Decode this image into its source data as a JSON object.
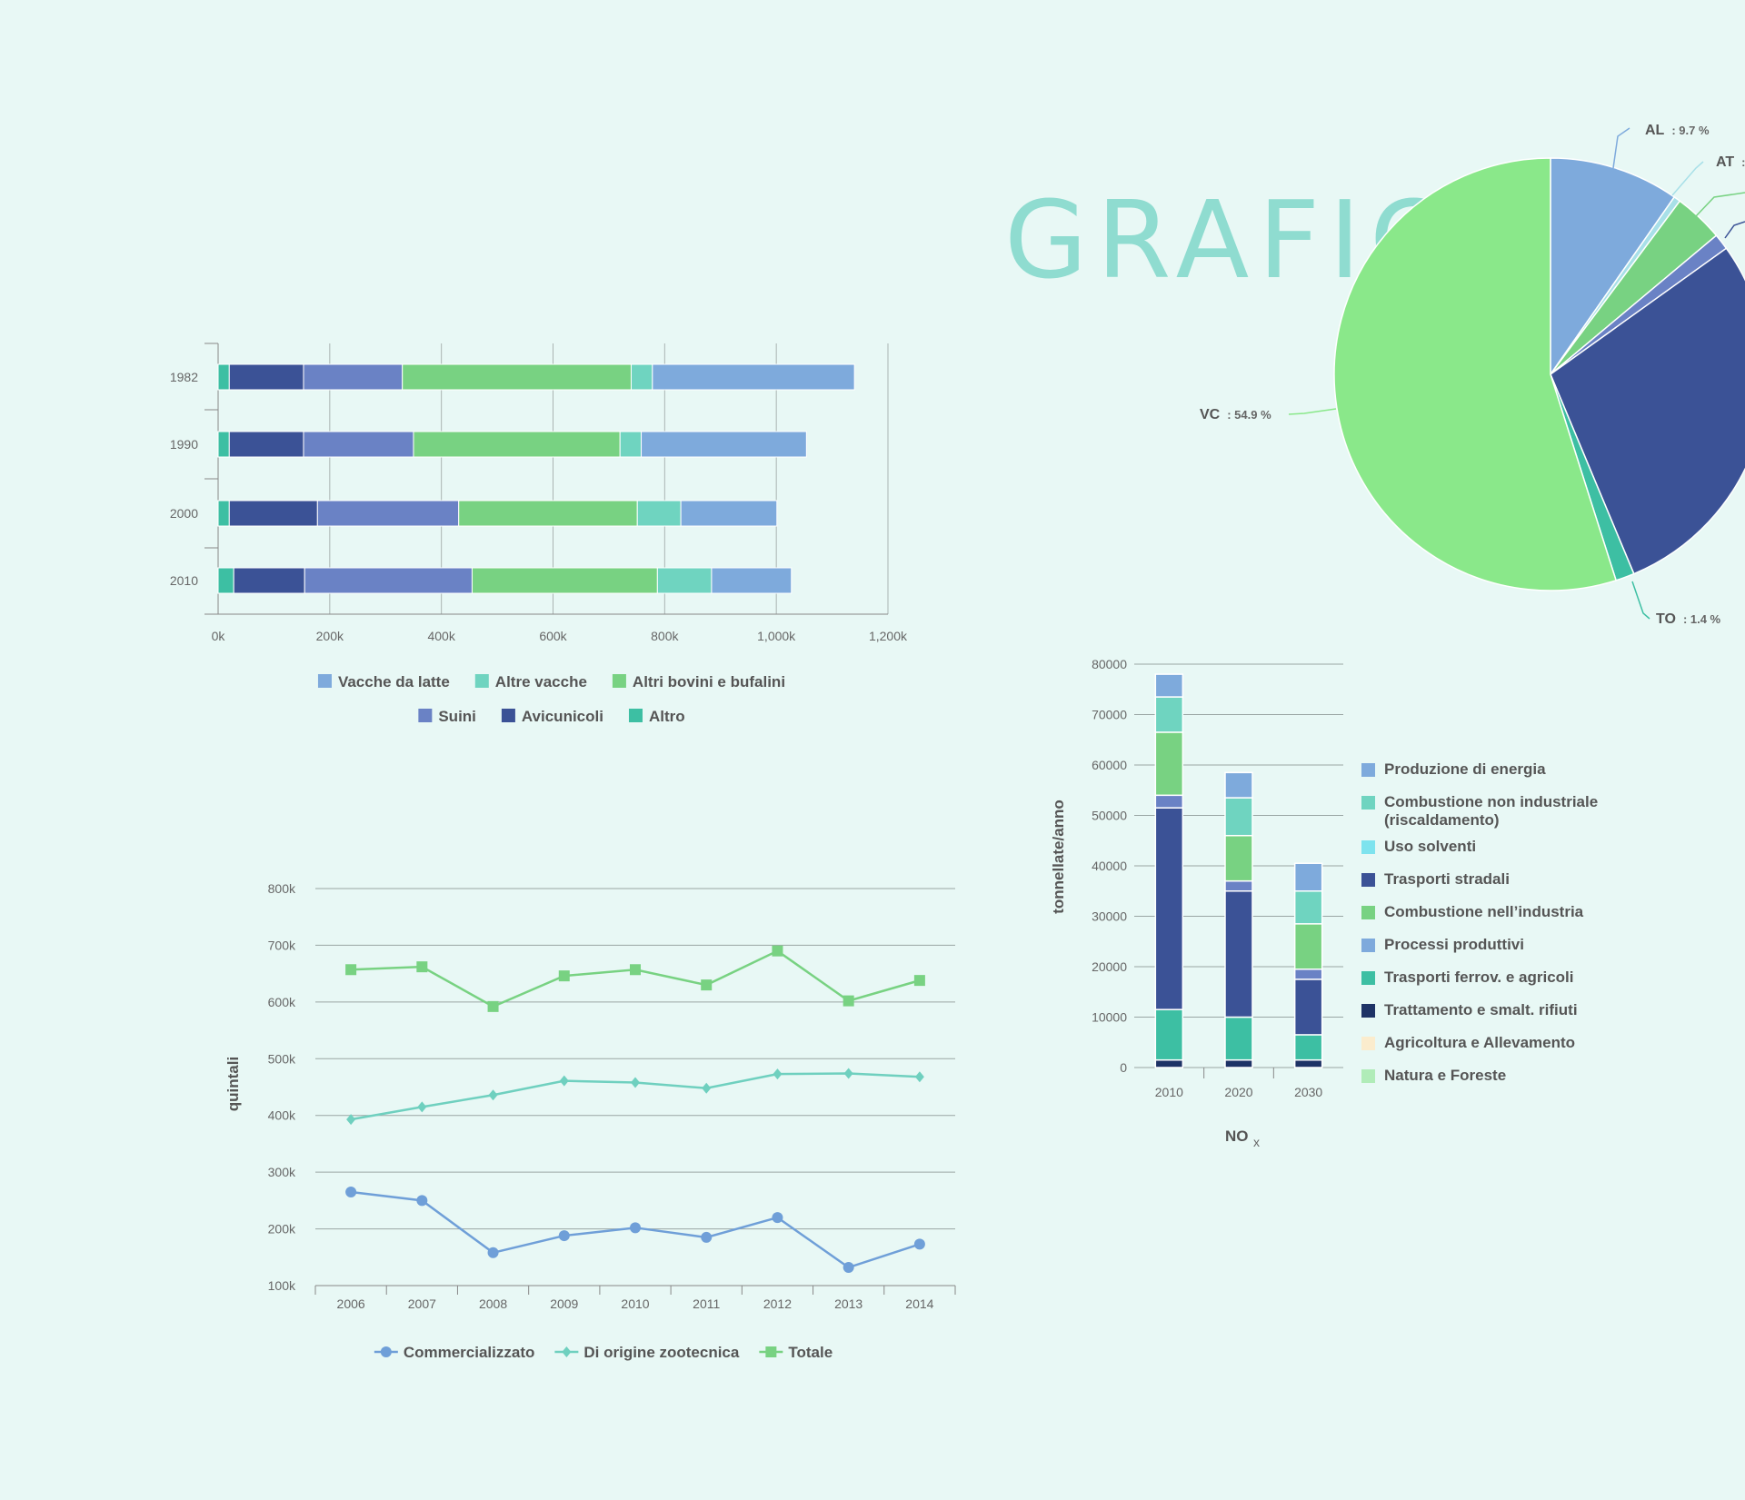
{
  "page": {
    "title": "GRAFICI"
  },
  "chart_data": [
    {
      "id": "livestock",
      "type": "bar",
      "orientation": "horizontal",
      "stacked": true,
      "categories": [
        "1982",
        "1990",
        "2000",
        "2010"
      ],
      "series": [
        {
          "name": "Altro",
          "color": "#3dbfa3",
          "values": [
            20000,
            20000,
            20000,
            28000
          ]
        },
        {
          "name": "Avicunicoli",
          "color": "#3b5296",
          "values": [
            133000,
            133000,
            158000,
            127000
          ]
        },
        {
          "name": "Suini",
          "color": "#6a82c5",
          "values": [
            177000,
            197000,
            253000,
            300000
          ]
        },
        {
          "name": "Altri bovini e bufalini",
          "color": "#78d282",
          "values": [
            410000,
            370000,
            320000,
            332000
          ]
        },
        {
          "name": "Altre vacche",
          "color": "#6fd4c0",
          "values": [
            38000,
            38000,
            78000,
            97000
          ]
        },
        {
          "name": "Vacche da latte",
          "color": "#7eaadc",
          "values": [
            362000,
            296000,
            172000,
            143000
          ]
        }
      ],
      "x_ticks": [
        "0k",
        "200k",
        "400k",
        "600k",
        "800k",
        "1,000k",
        "1,200k"
      ],
      "xlim": [
        0,
        1200000
      ],
      "legend_order": [
        "Vacche da latte",
        "Altre vacche",
        "Altri bovini e bufalini",
        "Suini",
        "Avicunicoli",
        "Altro"
      ],
      "legend_position": "bottom"
    },
    {
      "id": "production",
      "type": "line",
      "x": [
        "2006",
        "2007",
        "2008",
        "2009",
        "2010",
        "2011",
        "2012",
        "2013",
        "2014"
      ],
      "ylabel": "quintali",
      "y_ticks": [
        "100k",
        "200k",
        "300k",
        "400k",
        "500k",
        "600k",
        "700k",
        "800k"
      ],
      "ylim": [
        100000,
        800000
      ],
      "series": [
        {
          "name": "Commercializzato",
          "color": "#6f9fd8",
          "marker": "circle",
          "values": [
            265000,
            250000,
            158000,
            188000,
            202000,
            185000,
            220000,
            132000,
            173000
          ]
        },
        {
          "name": "Di origine zootecnica",
          "color": "#6fd0bf",
          "marker": "diamond",
          "values": [
            393000,
            415000,
            436000,
            461000,
            458000,
            448000,
            473000,
            474000,
            468000
          ]
        },
        {
          "name": "Totale",
          "color": "#78d282",
          "marker": "square",
          "values": [
            657000,
            662000,
            592000,
            646000,
            657000,
            630000,
            690000,
            602000,
            638000
          ]
        }
      ],
      "legend_position": "bottom"
    },
    {
      "id": "pie",
      "type": "pie",
      "slices": [
        {
          "label": "AL",
          "value_text": ": 9.7 %",
          "value": 9.7,
          "color": "#7eaadc"
        },
        {
          "label": "AT",
          "value_text": ":",
          "value": 0.5,
          "color": "#a8e0e8"
        },
        {
          "label": "",
          "value_text": "",
          "value": 3.7,
          "color": "#78d282"
        },
        {
          "label": "",
          "value_text": "",
          "value": 1.2,
          "color": "#6a82c5"
        },
        {
          "label": "",
          "value_text": "",
          "value": 28.6,
          "color": "#3b5296"
        },
        {
          "label": "TO",
          "value_text": ": 1.4 %",
          "value": 1.4,
          "color": "#3dbfa3"
        },
        {
          "label": "VC",
          "value_text": ": 54.9 %",
          "value": 54.9,
          "color": "#8ae88a"
        }
      ]
    },
    {
      "id": "nox",
      "type": "bar",
      "stacked": true,
      "categories": [
        "2010",
        "2020",
        "2030"
      ],
      "ylabel": "tonnellate/anno",
      "xlabel": "NO",
      "xlabel_sub": "x",
      "y_ticks": [
        "0",
        "10000",
        "20000",
        "30000",
        "40000",
        "50000",
        "60000",
        "70000",
        "80000"
      ],
      "ylim": [
        0,
        80000
      ],
      "series": [
        {
          "name": "Trattamento e smalt. rifiuti",
          "color": "#1e3366",
          "values": [
            1500,
            1500,
            1500
          ]
        },
        {
          "name": "Trasporti ferrov. e agricoli",
          "color": "#3dbfa3",
          "values": [
            10000,
            8500,
            5000
          ]
        },
        {
          "name": "Trasporti stradali",
          "color": "#3b5296",
          "values": [
            40000,
            25000,
            11000
          ]
        },
        {
          "name": "Processi produttivi",
          "color": "#6a82c5",
          "values": [
            2500,
            2000,
            2000
          ]
        },
        {
          "name": "Combustione nell’industria",
          "color": "#78d282",
          "values": [
            12500,
            9000,
            9000
          ]
        },
        {
          "name": "Combustione non industriale (riscaldamento)",
          "color": "#6fd4c0",
          "values": [
            7000,
            7500,
            6500
          ]
        },
        {
          "name": "Produzione di energia",
          "color": "#7eaadc",
          "values": [
            4500,
            5000,
            5500
          ]
        }
      ],
      "legend": [
        {
          "name": "Produzione di energia",
          "color": "#7eaadc"
        },
        {
          "name": "Combustione non industriale",
          "name2": "(riscaldamento)",
          "color": "#6fd4c0"
        },
        {
          "name": "Uso solventi",
          "color": "#7ee3ee"
        },
        {
          "name": "Trasporti stradali",
          "color": "#3b5296"
        },
        {
          "name": "Combustione nell’industria",
          "color": "#78d282"
        },
        {
          "name": "Processi produttivi",
          "color": "#7eaadc"
        },
        {
          "name": "Trasporti ferrov. e agricoli",
          "color": "#3dbfa3"
        },
        {
          "name": "Trattamento e smalt. rifiuti",
          "color": "#1e3366"
        },
        {
          "name": "Agricoltura e Allevamento",
          "color": "#fbeccd"
        },
        {
          "name": "Natura e Foreste",
          "color": "#b0ecb8"
        }
      ],
      "legend_position": "right"
    }
  ]
}
